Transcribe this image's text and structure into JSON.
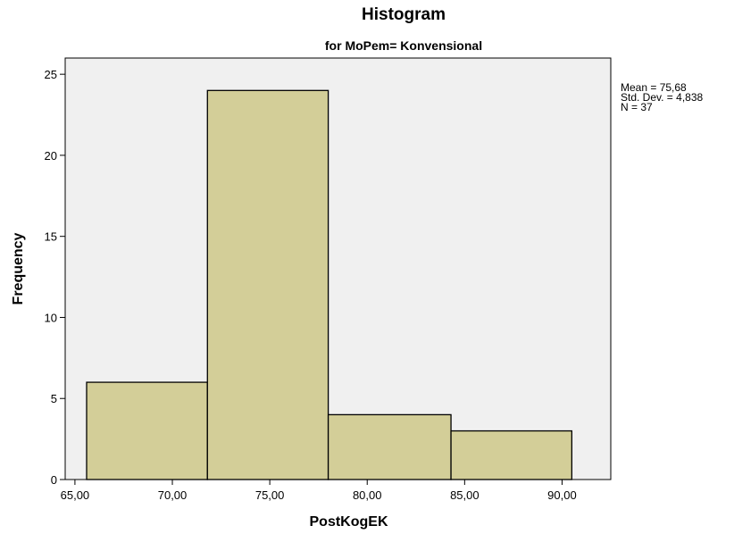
{
  "chart_data": {
    "type": "bar",
    "title": "Histogram",
    "subtitle": "for MoPem= Konvensional",
    "xlabel": "PostKogEK",
    "ylabel": "Frequency",
    "bins": [
      {
        "start": 65.6,
        "end": 71.8,
        "count": 6
      },
      {
        "start": 71.8,
        "end": 78.0,
        "count": 24
      },
      {
        "start": 78.0,
        "end": 84.3,
        "count": 4
      },
      {
        "start": 84.3,
        "end": 90.5,
        "count": 3
      }
    ],
    "xlim": [
      64.5,
      92.5
    ],
    "ylim": [
      0,
      26
    ],
    "xticks": [
      65,
      70,
      75,
      80,
      85,
      90
    ],
    "xtick_labels": [
      "65,00",
      "70,00",
      "75,00",
      "80,00",
      "85,00",
      "90,00"
    ],
    "yticks": [
      0,
      5,
      10,
      15,
      20,
      25
    ],
    "ytick_labels": [
      "0",
      "5",
      "10",
      "15",
      "20",
      "25"
    ],
    "stats": {
      "mean": "Mean = 75,68",
      "std": "Std. Dev. = 4,838",
      "n": "N = 37"
    },
    "colors": {
      "plot_background": "#f0f0f0",
      "bar_fill": "#d3ce98",
      "bar_stroke": "#000000"
    },
    "grid": false
  }
}
